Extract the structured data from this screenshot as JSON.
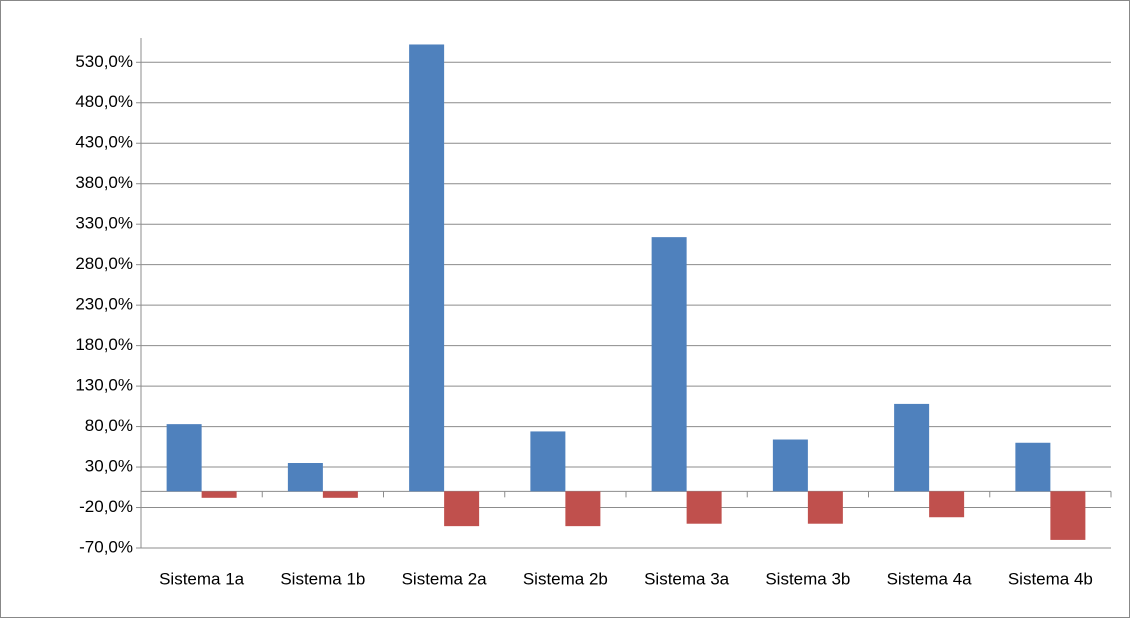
{
  "chart_data": {
    "type": "bar",
    "categories": [
      "Sistema  1a",
      "Sistema  1b",
      "Sistema  2a",
      "Sistema  2b",
      "Sistema  3a",
      "Sistema  3b",
      "Sistema  4a",
      "Sistema  4b"
    ],
    "series": [
      {
        "color": "#4f81bd",
        "values": [
          83,
          35,
          552,
          74,
          314,
          64,
          108,
          60
        ]
      },
      {
        "color": "#c0504d",
        "values": [
          -8,
          -8,
          -43,
          -43,
          -40,
          -40,
          -32,
          -60
        ]
      }
    ],
    "ylim": [
      -70,
      560
    ],
    "yticks": [
      {
        "value": -70,
        "label": "-70,0%"
      },
      {
        "value": -20,
        "label": "-20,0%"
      },
      {
        "value": 30,
        "label": "30,0%"
      },
      {
        "value": 80,
        "label": "80,0%"
      },
      {
        "value": 130,
        "label": "130,0%"
      },
      {
        "value": 180,
        "label": "180,0%"
      },
      {
        "value": 230,
        "label": "230,0%"
      },
      {
        "value": 280,
        "label": "280,0%"
      },
      {
        "value": 330,
        "label": "330,0%"
      },
      {
        "value": 380,
        "label": "380,0%"
      },
      {
        "value": 430,
        "label": "430,0%"
      },
      {
        "value": 480,
        "label": "480,0%"
      },
      {
        "value": 530,
        "label": "530,0%"
      }
    ],
    "grid": true
  }
}
